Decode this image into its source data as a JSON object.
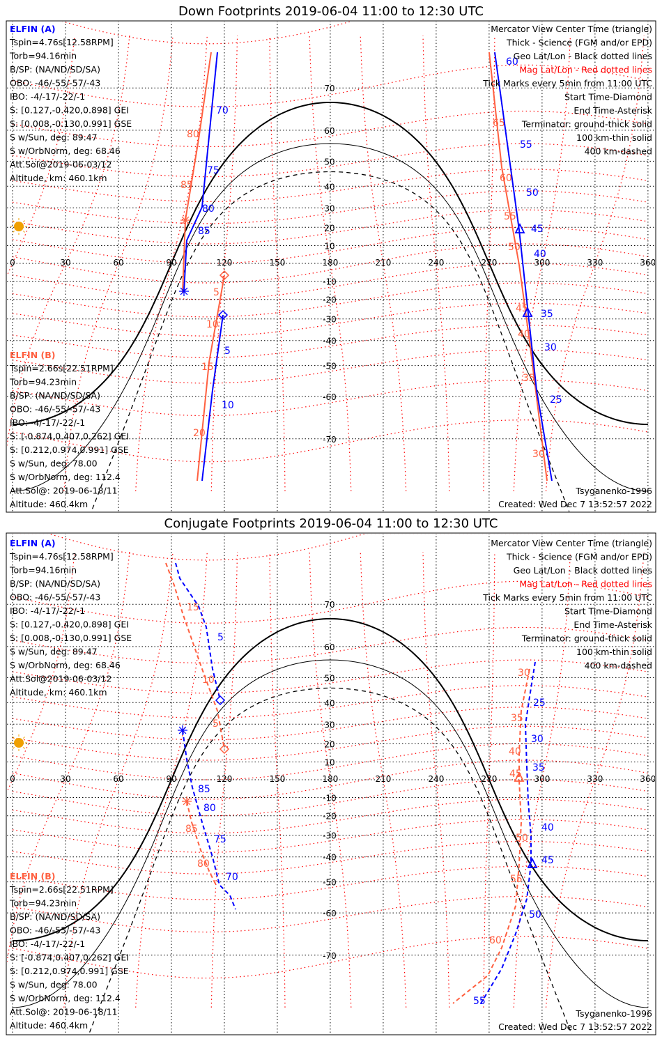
{
  "colors": {
    "probe_a": "#0000ff",
    "probe_b": "#ff6040",
    "mag_grid": "#ff0000",
    "geo_grid": "#000000",
    "coast": "#b0b0b0",
    "sun": "#f0a000"
  },
  "panels": [
    {
      "title": "Down Footprints 2019-06-04 11:00 to 12:30 UTC",
      "line_style": "solid"
    },
    {
      "title": "Conjugate Footprints 2019-06-04 11:00 to 12:30 UTC",
      "line_style": "dashed"
    }
  ],
  "probe_a": {
    "name": "ELFIN (A)",
    "lines": [
      "Tspin=4.76s[12.58RPM]",
      "Torb=94.16min",
      "B/SP: (NA/ND/SD/SA)",
      "OBO: -46/-55/-57/-43",
      "IBO: -4/-17/-22/-1",
      "S: [0.127,-0.420,0.898] GEI",
      "S: [0.008,-0.130,0.991] GSE",
      "S w/Sun, deg: 89.47",
      "S w/OrbNorm, deg: 68.46",
      "Att.Sol@2019-06-03/12",
      "Altitude, km: 460.1km"
    ]
  },
  "probe_b": {
    "name": "ELFIN (B)",
    "lines": [
      "Tspin=2.66s[22.51RPM]",
      "Torb=94.23min",
      "B/SP: (NA/ND/SD/SA)",
      "OBO: -46/-55/-57/-43",
      "IBO: -4/-17/-22/-1",
      "S: [-0.874,0.407,0.262] GEI",
      "S: [0.212,0.974,0.991] GSE",
      "S w/Sun, deg: 78.00",
      "S w/OrbNorm, deg: 112.4",
      "Att.Sol@: 2019-06-18/11",
      "Altitude: 460.4km"
    ]
  },
  "legend": [
    "Mercator View Center Time (triangle)",
    "Thick - Science (FGM and/or EPD)",
    "Geo Lat/Lon - Black dotted lines",
    "Mag Lat/Lon - Red dotted lines",
    "Tick Marks every 5min from 11:00 UTC",
    "Start Time-Diamond",
    "End Time-Asterisk",
    "Terminator: ground-thick solid",
    "100 km-thin solid",
    "400 km-dashed"
  ],
  "footer": {
    "model": "Tsyganenko-1996",
    "created": "Created: Wed Dec  7 13:52:57 2022"
  },
  "chart_data": {
    "type": "line",
    "projection": "mercator",
    "x_ticks": [
      "0",
      "30",
      "60",
      "90",
      "120",
      "150",
      "180",
      "210",
      "240",
      "270",
      "300",
      "330",
      "360"
    ],
    "lat_ticks": [
      "70",
      "60",
      "50",
      "40",
      "30",
      "20",
      "10",
      "-10",
      "-20",
      "-30",
      "-40",
      "-50",
      "-60",
      "-70"
    ],
    "lat_values": [
      70,
      60,
      50,
      40,
      30,
      20,
      10,
      -10,
      -20,
      -30,
      -40,
      -50,
      -60,
      -70
    ],
    "terminator_peak_lat": {
      "ground": 67,
      "100km": 56,
      "400km": 46
    },
    "track_labels": {
      "down": {
        "a_left_blue": [
          "70",
          "75",
          "80",
          "85"
        ],
        "a_left_red": [
          "80",
          "85"
        ],
        "b_left_red": [
          "5",
          "10",
          "15",
          "20"
        ],
        "b_left_blue": [
          "5",
          "10"
        ],
        "a_right_blue": [
          "60",
          "55",
          "50",
          "45",
          "40"
        ],
        "b_right_blue": [
          "35",
          "30",
          "25"
        ],
        "a_right_red": [
          "65",
          "60",
          "55",
          "50"
        ],
        "b_right_red": [
          "45",
          "40",
          "35",
          "30"
        ]
      },
      "conj": {
        "a_left_red": [
          "15",
          "10",
          "5"
        ],
        "a_left_blue": [
          "5"
        ],
        "b_left_blue": [
          "85",
          "80",
          "75",
          "70"
        ],
        "b_left_red": [
          "85",
          "80"
        ],
        "a_right_red": [
          "30",
          "35",
          "40",
          "45"
        ],
        "a_right_blue": [
          "25",
          "30",
          "35"
        ],
        "b_right_blue": [
          "40",
          "45",
          "50",
          "55"
        ],
        "b_right_red": [
          "50",
          "55",
          "60"
        ]
      }
    }
  }
}
